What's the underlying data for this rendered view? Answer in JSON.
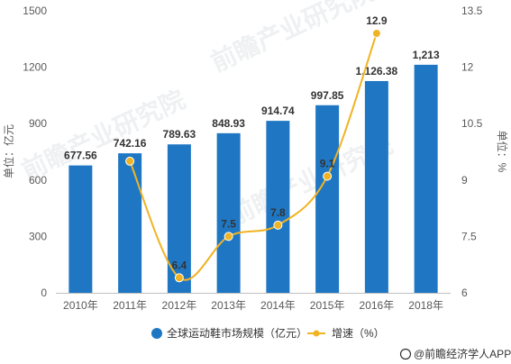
{
  "chart_data": {
    "type": "bar",
    "categories": [
      "2010年",
      "2011年",
      "2012年",
      "2013年",
      "2014年",
      "2015年",
      "2016年",
      "2018年"
    ],
    "series": [
      {
        "name": "全球运动鞋市场规模（亿元）",
        "type": "bar",
        "axis": "left",
        "color": "#1f77c4",
        "values": [
          677.56,
          742.16,
          789.63,
          848.93,
          914.74,
          997.85,
          1126.38,
          1213
        ],
        "labels": [
          "677.56",
          "742.16",
          "789.63",
          "848.93",
          "914.74",
          "997.85",
          "1,126.38",
          "1,213"
        ]
      },
      {
        "name": "增速（%）",
        "type": "line",
        "axis": "right",
        "color": "#f0b323",
        "values": [
          null,
          9.5,
          6.4,
          7.5,
          7.8,
          9.1,
          12.9,
          null
        ],
        "labels": [
          "",
          "",
          "6.4",
          "7.5",
          "7.8",
          "9.1",
          "12.9",
          ""
        ]
      }
    ],
    "ylim_left": [
      0,
      1500
    ],
    "ylim_right": [
      6,
      13.5
    ],
    "yticks_left": [
      "0",
      "300",
      "600",
      "900",
      "1200",
      "1500"
    ],
    "yticks_right": [
      "6",
      "7.5",
      "9",
      "10.5",
      "12",
      "13.5"
    ],
    "ylabel_left": "单位：亿元",
    "ylabel_right": "单位：%",
    "legend_position": "bottom"
  },
  "watermark": "前瞻产业研究院",
  "source": "@前瞻经济学人APP"
}
